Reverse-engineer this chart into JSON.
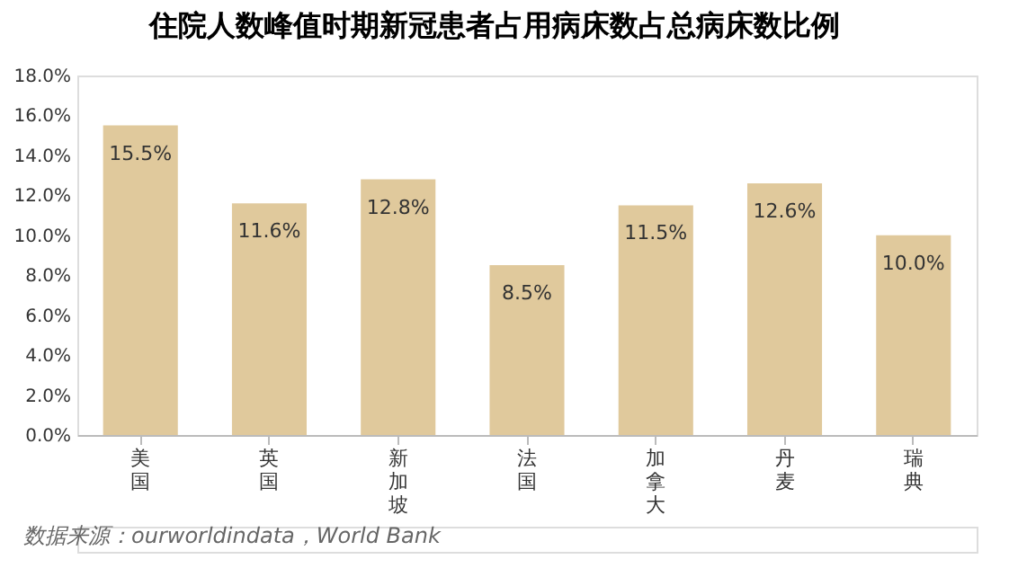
{
  "chart_data": {
    "type": "bar",
    "title": "住院人数峰值时期新冠患者占用病床数占总病床数比例",
    "categories": [
      "美国",
      "英国",
      "新加坡",
      "法国",
      "加拿大",
      "丹麦",
      "瑞典"
    ],
    "values": [
      15.5,
      11.6,
      12.8,
      8.5,
      11.5,
      12.6,
      10.0
    ],
    "value_labels": [
      "15.5%",
      "11.6%",
      "12.8%",
      "8.5%",
      "11.5%",
      "12.6%",
      "10.0%"
    ],
    "color": "#e0c99c",
    "ylim": [
      0,
      18
    ],
    "yticks": [
      {
        "value": 0,
        "label": "0.0%"
      },
      {
        "value": 2,
        "label": "2.0%"
      },
      {
        "value": 4,
        "label": "4.0%"
      },
      {
        "value": 6,
        "label": "6.0%"
      },
      {
        "value": 8,
        "label": "8.0%"
      },
      {
        "value": 10,
        "label": "10.0%"
      },
      {
        "value": 12,
        "label": "12.0%"
      },
      {
        "value": 14,
        "label": "14.0%"
      },
      {
        "value": 16,
        "label": "16.0%"
      },
      {
        "value": 18,
        "label": "18.0%"
      }
    ],
    "grid": false,
    "annotations": [
      "数据来源：ourworldindata，World Bank"
    ]
  }
}
